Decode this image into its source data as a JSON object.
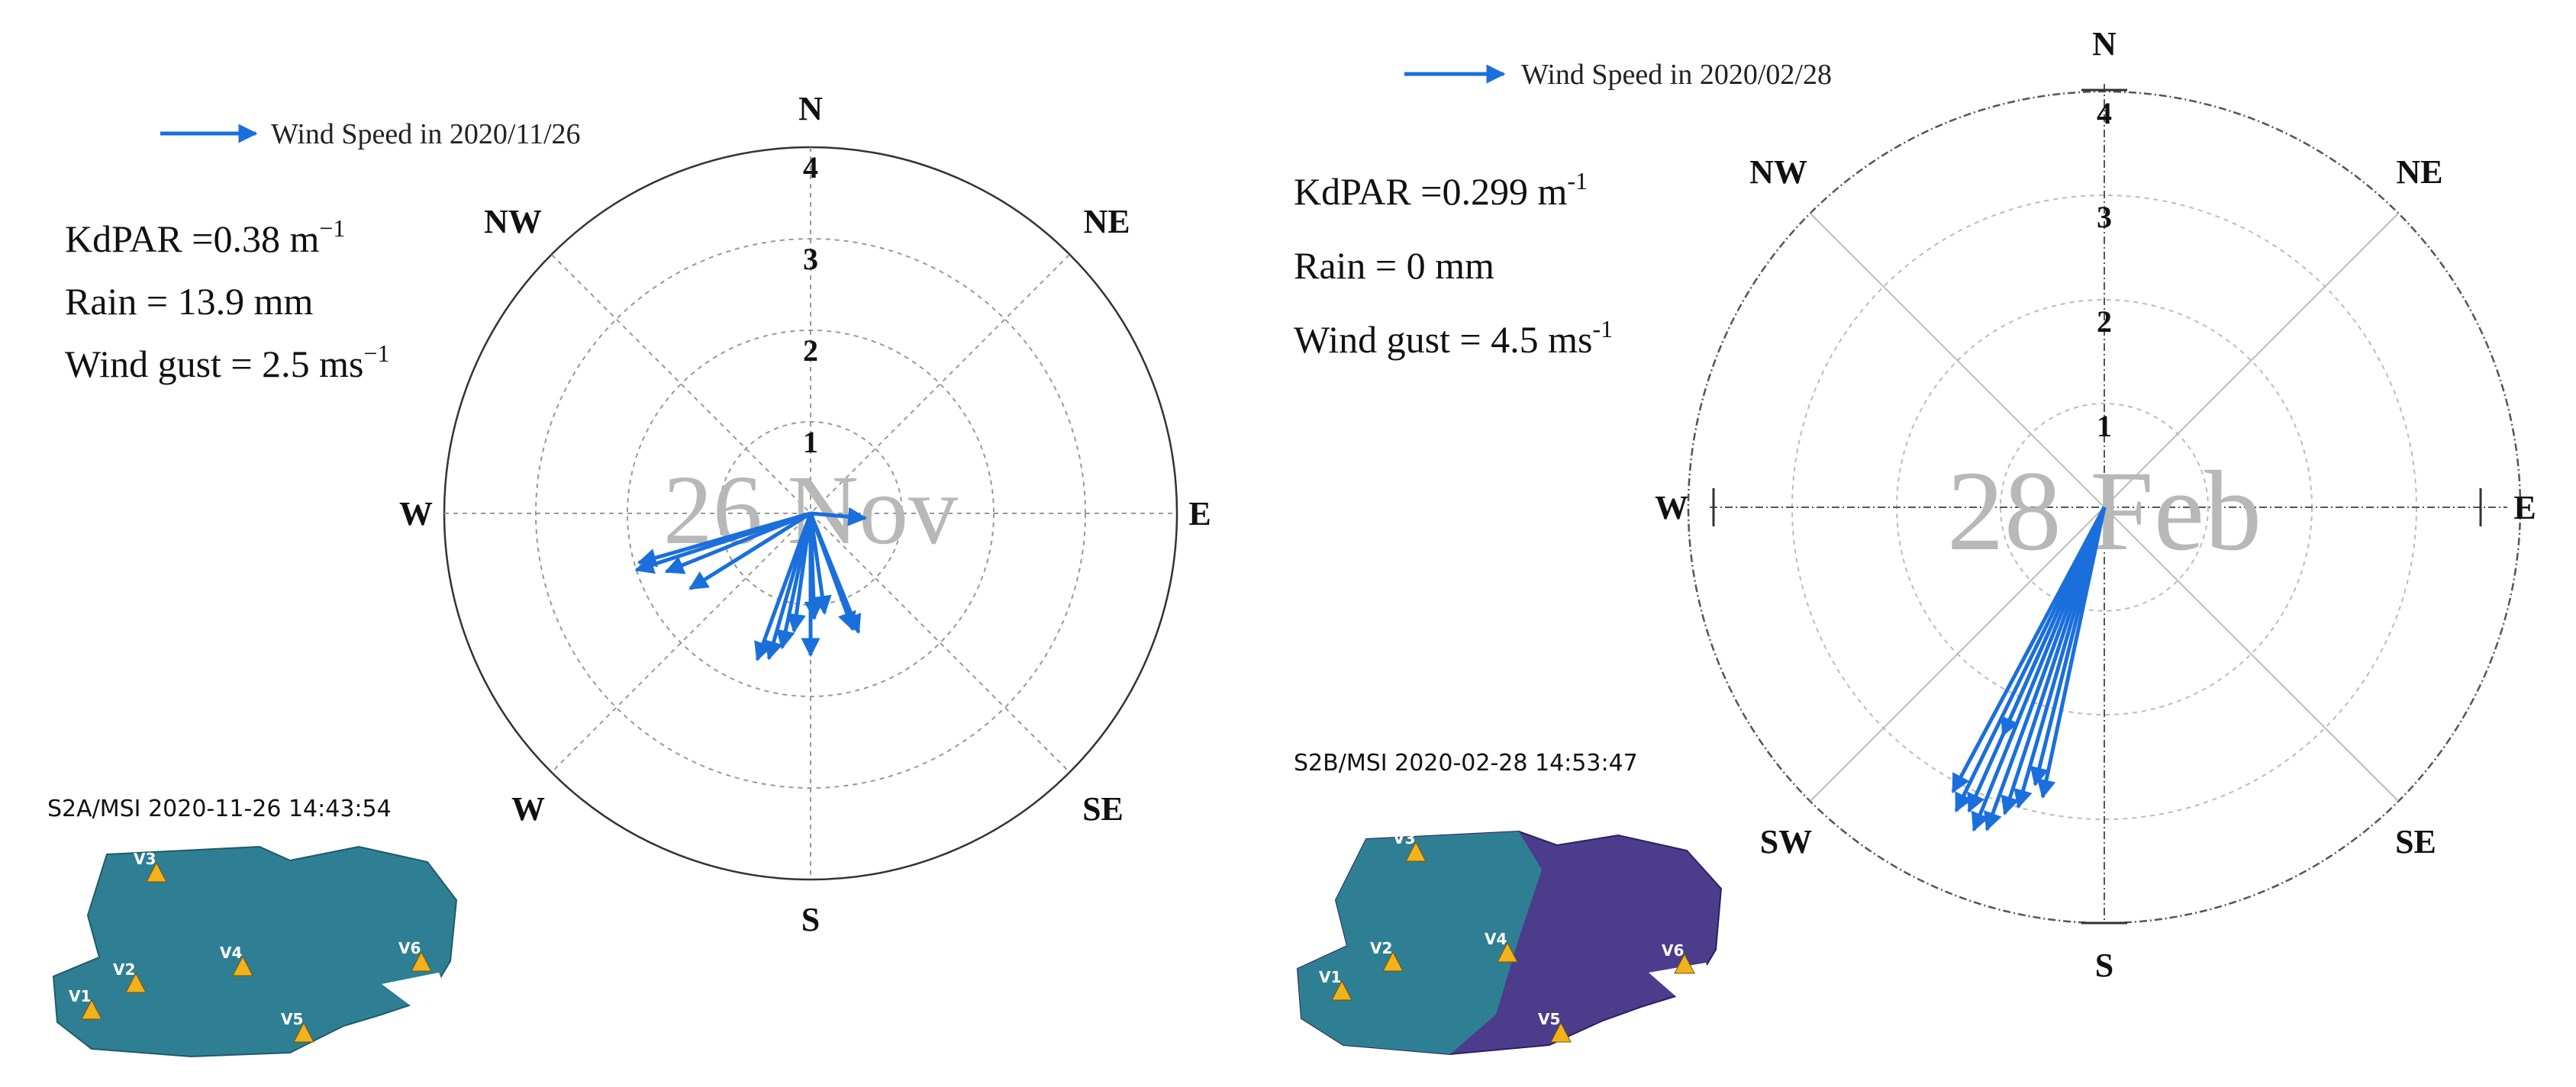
{
  "chart_data": [
    {
      "type": "polar-vector",
      "legend": "Wind Speed in 2020/11/26",
      "watermark": "26 Nov",
      "stats": {
        "kd_label": "KdPAR =0.38 m",
        "kd_sup": "−1",
        "rain": "Rain = 13.9 mm",
        "gust_label": "Wind gust = 2.5 ms",
        "gust_sup": "−1"
      },
      "directions": [
        "N",
        "NE",
        "E",
        "SE",
        "S",
        "W",
        "W",
        "NW"
      ],
      "radial_ticks": [
        "1",
        "2",
        "3",
        "4"
      ],
      "rmax": 4,
      "series_color": "#1a6fdc",
      "vectors": [
        {
          "bearing": 252,
          "speed": 2.0
        },
        {
          "bearing": 254,
          "speed": 1.95
        },
        {
          "bearing": 248,
          "speed": 1.7
        },
        {
          "bearing": 238,
          "speed": 1.55
        },
        {
          "bearing": 200,
          "speed": 1.7
        },
        {
          "bearing": 196,
          "speed": 1.65
        },
        {
          "bearing": 192,
          "speed": 1.5
        },
        {
          "bearing": 188,
          "speed": 1.3
        },
        {
          "bearing": 180,
          "speed": 1.55
        },
        {
          "bearing": 178,
          "speed": 1.15
        },
        {
          "bearing": 172,
          "speed": 1.1
        },
        {
          "bearing": 160,
          "speed": 1.35
        },
        {
          "bearing": 158,
          "speed": 1.4
        },
        {
          "bearing": 95,
          "speed": 0.6
        }
      ],
      "satellite": {
        "title": "S2A/MSI 2020-11-26 14:43:54",
        "stations": [
          "V1",
          "V2",
          "V3",
          "V4",
          "V5",
          "V6"
        ],
        "fill": "#2f7f94"
      }
    },
    {
      "type": "polar-vector",
      "legend": "Wind Speed in 2020/02/28",
      "watermark": "28 Feb",
      "stats": {
        "kd_label": "KdPAR =0.299 m",
        "kd_sup": "-1",
        "rain": "Rain = 0 mm",
        "gust_label": "Wind gust = 4.5 ms",
        "gust_sup": "-1"
      },
      "directions": [
        "N",
        "NE",
        "E",
        "SE",
        "S",
        "SW",
        "W",
        "NW"
      ],
      "radial_ticks": [
        "1",
        "2",
        "3",
        "4"
      ],
      "rmax": 4,
      "series_color": "#1a6fdc",
      "vectors": [
        {
          "bearing": 208,
          "speed": 3.1
        },
        {
          "bearing": 206,
          "speed": 3.25
        },
        {
          "bearing": 204,
          "speed": 3.2
        },
        {
          "bearing": 202,
          "speed": 3.35
        },
        {
          "bearing": 200,
          "speed": 3.3
        },
        {
          "bearing": 198,
          "speed": 3.1
        },
        {
          "bearing": 196,
          "speed": 3.0
        },
        {
          "bearing": 194,
          "speed": 2.75
        },
        {
          "bearing": 192,
          "speed": 2.85
        },
        {
          "bearing": 204,
          "speed": 2.4
        }
      ],
      "satellite": {
        "title": "S2B/MSI 2020-02-28 14:53:47",
        "stations": [
          "V1",
          "V2",
          "V3",
          "V4",
          "V5",
          "V6"
        ],
        "fill": "#4c3c8c"
      }
    }
  ]
}
